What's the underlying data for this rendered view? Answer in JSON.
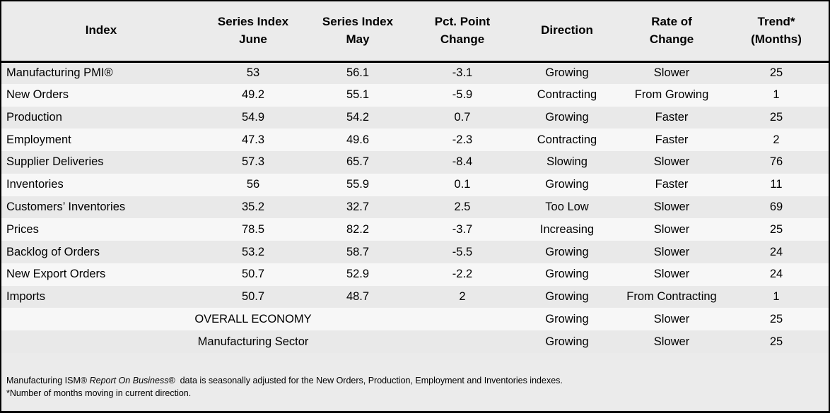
{
  "chart_data": {
    "type": "table",
    "columns": [
      "Index",
      "Series Index\nJune",
      "Series Index\nMay",
      "Pct. Point\nChange",
      "Direction",
      "Rate of\nChange",
      "Trend*\n(Months)"
    ],
    "rows": [
      {
        "index": "Manufacturing PMI®",
        "june": "53",
        "may": "56.1",
        "change": "-3.1",
        "direction": "Growing",
        "rate": "Slower",
        "trend": "25"
      },
      {
        "index": "New Orders",
        "june": "49.2",
        "may": "55.1",
        "change": "-5.9",
        "direction": "Contracting",
        "rate": "From Growing",
        "trend": "1"
      },
      {
        "index": "Production",
        "june": "54.9",
        "may": "54.2",
        "change": "0.7",
        "direction": "Growing",
        "rate": "Faster",
        "trend": "25"
      },
      {
        "index": "Employment",
        "june": "47.3",
        "may": "49.6",
        "change": "-2.3",
        "direction": "Contracting",
        "rate": "Faster",
        "trend": "2"
      },
      {
        "index": "Supplier Deliveries",
        "june": "57.3",
        "may": "65.7",
        "change": "-8.4",
        "direction": "Slowing",
        "rate": "Slower",
        "trend": "76"
      },
      {
        "index": "Inventories",
        "june": "56",
        "may": "55.9",
        "change": "0.1",
        "direction": "Growing",
        "rate": "Faster",
        "trend": "11"
      },
      {
        "index": "Customers’ Inventories",
        "june": "35.2",
        "may": "32.7",
        "change": "2.5",
        "direction": "Too Low",
        "rate": "Slower",
        "trend": "69"
      },
      {
        "index": "Prices",
        "june": "78.5",
        "may": "82.2",
        "change": "-3.7",
        "direction": "Increasing",
        "rate": "Slower",
        "trend": "25"
      },
      {
        "index": "Backlog of Orders",
        "june": "53.2",
        "may": "58.7",
        "change": "-5.5",
        "direction": "Growing",
        "rate": "Slower",
        "trend": "24"
      },
      {
        "index": "New Export Orders",
        "june": "50.7",
        "may": "52.9",
        "change": "-2.2",
        "direction": "Growing",
        "rate": "Slower",
        "trend": "24"
      },
      {
        "index": "Imports",
        "june": "50.7",
        "may": "48.7",
        "change": "2",
        "direction": "Growing",
        "rate": "From Contracting",
        "trend": "1"
      }
    ],
    "summary_rows": [
      {
        "label": "OVERALL ECONOMY",
        "direction": "Growing",
        "rate": "Slower",
        "trend": "25"
      },
      {
        "label": "Manufacturing Sector",
        "direction": "Growing",
        "rate": "Slower",
        "trend": "25"
      }
    ],
    "footnotes": {
      "line1_prefix": "Manufacturing ISM® ",
      "line1_italic": "Report On Business",
      "line1_suffix": "®  data is seasonally adjusted for the New Orders, Production, Employment and Inventories indexes.",
      "line2": "*Number of months moving in current direction."
    },
    "layout": {
      "colors": {
        "header_bg": "#ebebeb",
        "row_odd_bg": "#e9e9e9",
        "row_even_bg": "#f7f7f7",
        "border": "#000000",
        "text": "#000000"
      },
      "grid": "horizontal header separator only",
      "legend": "none"
    }
  }
}
